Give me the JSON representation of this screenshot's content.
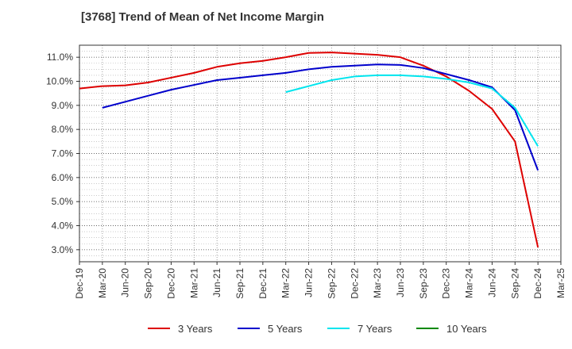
{
  "chart_data": {
    "type": "line",
    "title": "[3768]  Trend of Mean of Net Income Margin",
    "xlabel": "",
    "ylabel": "",
    "x": [
      "Dec-19",
      "Mar-20",
      "Jun-20",
      "Sep-20",
      "Dec-20",
      "Mar-21",
      "Jun-21",
      "Sep-21",
      "Dec-21",
      "Mar-22",
      "Jun-22",
      "Sep-22",
      "Dec-22",
      "Mar-23",
      "Jun-23",
      "Sep-23",
      "Dec-23",
      "Mar-24",
      "Jun-24",
      "Sep-24",
      "Dec-24",
      "Mar-25"
    ],
    "ylim": [
      2.5,
      11.5
    ],
    "yticks": [
      "3.0%",
      "4.0%",
      "5.0%",
      "6.0%",
      "7.0%",
      "8.0%",
      "9.0%",
      "10.0%",
      "11.0%"
    ],
    "yticks_values": [
      3,
      4,
      5,
      6,
      7,
      8,
      9,
      10,
      11
    ],
    "grid": true,
    "legend_position": "bottom",
    "series": [
      {
        "name": "3 Years",
        "color": "#dd0000",
        "values": [
          9.7,
          9.8,
          9.83,
          9.95,
          10.15,
          10.35,
          10.6,
          10.75,
          10.85,
          11.0,
          11.18,
          11.2,
          11.15,
          11.1,
          11.0,
          10.65,
          10.2,
          9.6,
          8.85,
          7.5,
          3.1,
          null
        ]
      },
      {
        "name": "5 Years",
        "color": "#0000cc",
        "values": [
          null,
          8.9,
          9.15,
          9.4,
          9.65,
          9.85,
          10.05,
          10.15,
          10.25,
          10.35,
          10.5,
          10.6,
          10.65,
          10.7,
          10.68,
          10.55,
          10.3,
          10.05,
          9.75,
          8.8,
          6.3,
          null
        ]
      },
      {
        "name": "7 Years",
        "color": "#00e5ee",
        "values": [
          null,
          null,
          null,
          null,
          null,
          null,
          null,
          null,
          null,
          9.55,
          9.8,
          10.05,
          10.2,
          10.25,
          10.25,
          10.2,
          10.1,
          9.95,
          9.7,
          8.9,
          7.3,
          null
        ]
      },
      {
        "name": "10 Years",
        "color": "#008800",
        "values": [
          null,
          null,
          null,
          null,
          null,
          null,
          null,
          null,
          null,
          null,
          null,
          null,
          null,
          null,
          null,
          null,
          null,
          null,
          null,
          null,
          null,
          null
        ]
      }
    ]
  }
}
